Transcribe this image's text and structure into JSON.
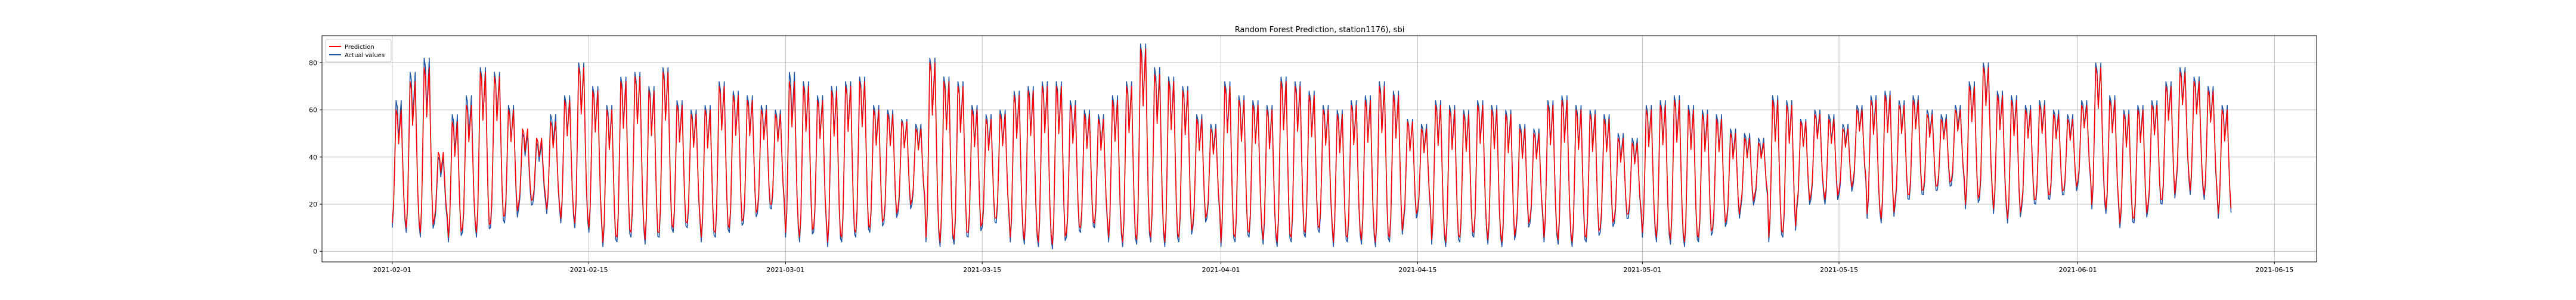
{
  "chart_data": {
    "type": "line",
    "title": "Random Forest Prediction, station1176), sbi",
    "xlabel": "",
    "ylabel": "",
    "x_range": [
      "2021-01-27",
      "2021-06-18"
    ],
    "ylim": [
      -4.5,
      91.5
    ],
    "x_ticks": [
      "2021-02-01",
      "2021-02-15",
      "2021-03-01",
      "2021-03-15",
      "2021-04-01",
      "2021-04-15",
      "2021-05-01",
      "2021-05-15",
      "2021-06-01",
      "2021-06-15"
    ],
    "y_ticks": [
      0,
      20,
      40,
      60,
      80
    ],
    "grid": true,
    "legend_position": "top-left",
    "data_start": "2021-02-01",
    "data_end": "2021-06-10",
    "series": [
      {
        "name": "Prediction",
        "color": "#ff0000",
        "daily_min": [
          12,
          10,
          8,
          14,
          6,
          10,
          8,
          12,
          15,
          20,
          22,
          18,
          14,
          12,
          10,
          4,
          6,
          8,
          5,
          8,
          10,
          12,
          6,
          8,
          10,
          14,
          18,
          20,
          8,
          6,
          10,
          4,
          6,
          8,
          10,
          14,
          18,
          22,
          6,
          4,
          5,
          8,
          12,
          14,
          6,
          5,
          4,
          3,
          8,
          10,
          12,
          6,
          4,
          5,
          6,
          4,
          6,
          12,
          16,
          4,
          6,
          8,
          5,
          4,
          6,
          8,
          10,
          4,
          6,
          5,
          4,
          6,
          14,
          18,
          5,
          4,
          6,
          8,
          5,
          4,
          10,
          14,
          6,
          5,
          4,
          6,
          10,
          14,
          16,
          8,
          6,
          5,
          4,
          6,
          10,
          14,
          20,
          24,
          6,
          8,
          20,
          24,
          22,
          26,
          30,
          16,
          14,
          22,
          24,
          26,
          28,
          30,
          20,
          24,
          18,
          14,
          20,
          22,
          24,
          26,
          30,
          20,
          18,
          12,
          14,
          20,
          22,
          30,
          26,
          24,
          16
        ],
        "daily_max": [
          60,
          72,
          78,
          42,
          55,
          62,
          76,
          74,
          60,
          52,
          48,
          55,
          64,
          78,
          68,
          60,
          72,
          74,
          68,
          76,
          62,
          58,
          60,
          70,
          66,
          64,
          60,
          58,
          72,
          70,
          64,
          68,
          70,
          72,
          60,
          58,
          55,
          52,
          80,
          72,
          70,
          60,
          56,
          58,
          66,
          68,
          70,
          70,
          62,
          58,
          56,
          64,
          70,
          86,
          75,
          72,
          68,
          56,
          52,
          70,
          64,
          62,
          60,
          72,
          70,
          66,
          60,
          58,
          62,
          64,
          70,
          66,
          55,
          52,
          62,
          60,
          58,
          62,
          60,
          58,
          52,
          50,
          62,
          64,
          60,
          58,
          56,
          48,
          46,
          60,
          62,
          64,
          60,
          58,
          56,
          50,
          48,
          46,
          64,
          62,
          55,
          58,
          56,
          52,
          60,
          64,
          66,
          62,
          64,
          58,
          56,
          60,
          70,
          78,
          66,
          64,
          60,
          62,
          58,
          56,
          62,
          78,
          64,
          58,
          60,
          62,
          70,
          76,
          72,
          68,
          60
        ]
      },
      {
        "name": "Actual values",
        "color": "#1f57a4",
        "daily_min": [
          10,
          8,
          6,
          12,
          4,
          8,
          6,
          10,
          12,
          18,
          20,
          16,
          12,
          10,
          8,
          2,
          4,
          6,
          3,
          6,
          8,
          10,
          4,
          6,
          8,
          12,
          16,
          18,
          6,
          4,
          8,
          2,
          4,
          6,
          8,
          12,
          16,
          20,
          4,
          2,
          3,
          6,
          10,
          12,
          4,
          3,
          2,
          1,
          6,
          8,
          10,
          4,
          2,
          3,
          4,
          2,
          4,
          10,
          14,
          2,
          4,
          6,
          3,
          2,
          4,
          6,
          8,
          2,
          4,
          3,
          2,
          4,
          12,
          16,
          3,
          2,
          4,
          6,
          3,
          2,
          8,
          12,
          4,
          3,
          2,
          4,
          8,
          12,
          14,
          6,
          4,
          3,
          2,
          4,
          8,
          12,
          18,
          22,
          4,
          6,
          18,
          22,
          20,
          24,
          28,
          14,
          12,
          20,
          22,
          24,
          26,
          28,
          18,
          22,
          16,
          12,
          18,
          20,
          22,
          24,
          28,
          18,
          16,
          10,
          12,
          18,
          20,
          28,
          24,
          22,
          14
        ],
        "daily_max": [
          64,
          76,
          82,
          40,
          58,
          66,
          78,
          76,
          62,
          50,
          46,
          58,
          66,
          80,
          70,
          62,
          74,
          76,
          70,
          78,
          64,
          60,
          62,
          72,
          68,
          66,
          62,
          60,
          76,
          72,
          66,
          70,
          72,
          74,
          62,
          60,
          56,
          54,
          82,
          74,
          72,
          62,
          58,
          60,
          68,
          70,
          72,
          72,
          64,
          60,
          58,
          66,
          72,
          88,
          78,
          74,
          70,
          58,
          54,
          72,
          66,
          64,
          62,
          74,
          72,
          68,
          62,
          60,
          64,
          66,
          72,
          68,
          56,
          54,
          64,
          62,
          60,
          64,
          62,
          60,
          54,
          52,
          64,
          66,
          62,
          60,
          58,
          50,
          48,
          62,
          64,
          66,
          62,
          60,
          58,
          52,
          50,
          48,
          66,
          64,
          56,
          60,
          58,
          54,
          62,
          66,
          68,
          64,
          66,
          60,
          58,
          62,
          72,
          80,
          68,
          66,
          62,
          64,
          60,
          58,
          64,
          80,
          66,
          60,
          62,
          64,
          72,
          78,
          74,
          70,
          62
        ]
      }
    ]
  }
}
